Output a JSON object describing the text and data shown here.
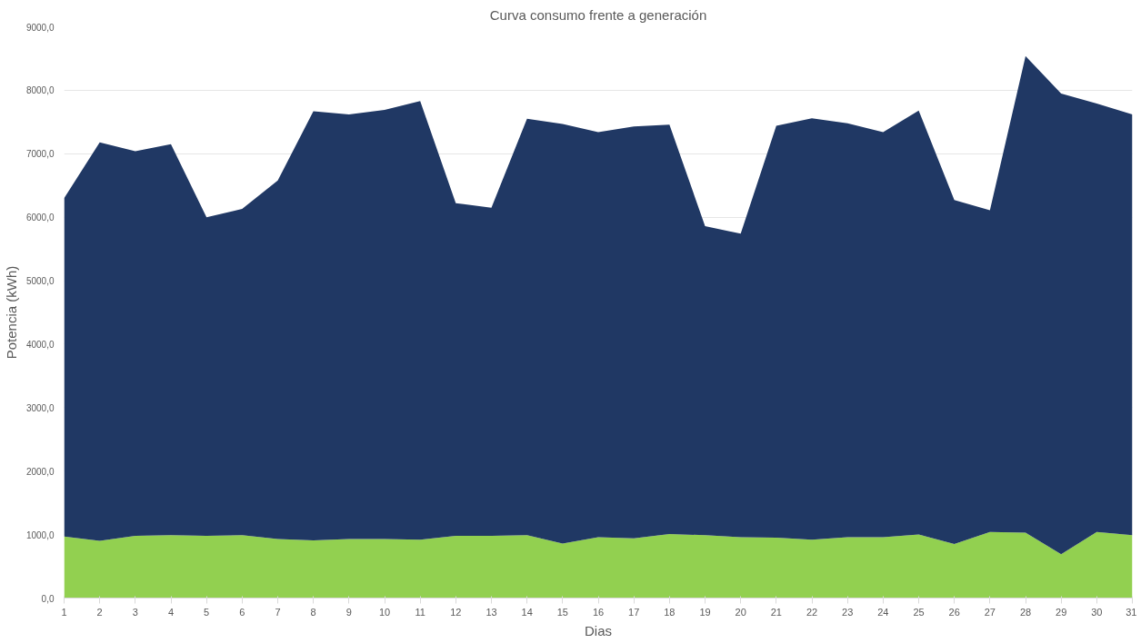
{
  "chart_data": {
    "type": "area",
    "title": "Curva consumo frente a generación",
    "xlabel": "Dias",
    "ylabel": "Potencia (kWh)",
    "x": [
      1,
      2,
      3,
      4,
      5,
      6,
      7,
      8,
      9,
      10,
      11,
      12,
      13,
      14,
      15,
      16,
      17,
      18,
      19,
      20,
      21,
      22,
      23,
      24,
      25,
      26,
      27,
      28,
      29,
      30,
      31
    ],
    "xlim": [
      1,
      31
    ],
    "xticks": [
      1,
      2,
      3,
      4,
      5,
      6,
      7,
      8,
      9,
      10,
      11,
      12,
      13,
      14,
      15,
      16,
      17,
      18,
      19,
      20,
      21,
      22,
      23,
      24,
      25,
      26,
      27,
      28,
      29,
      30,
      31
    ],
    "series": [
      {
        "color": "#92d050",
        "values": [
          970,
          900,
          980,
          990,
          980,
          990,
          930,
          910,
          930,
          930,
          920,
          980,
          980,
          990,
          860,
          960,
          940,
          1010,
          990,
          960,
          950,
          920,
          960,
          960,
          1000,
          850,
          1040,
          1030,
          690,
          1040,
          990
        ]
      },
      {
        "color": "#203864",
        "values": [
          5330,
          6280,
          6060,
          6160,
          5020,
          5140,
          5650,
          6760,
          6690,
          6760,
          6910,
          5240,
          5170,
          6560,
          6610,
          6380,
          6490,
          6450,
          4870,
          4780,
          6490,
          6640,
          6520,
          6380,
          6680,
          5420,
          5070,
          7510,
          7260,
          6750,
          6630
        ]
      }
    ],
    "ylim": [
      0,
      9000
    ],
    "yticks": [
      {
        "value": 0,
        "label": "0,0"
      },
      {
        "value": 1000,
        "label": "1000,0"
      },
      {
        "value": 2000,
        "label": "2000,0"
      },
      {
        "value": 3000,
        "label": "3000,0"
      },
      {
        "value": 4000,
        "label": "4000,0"
      },
      {
        "value": 5000,
        "label": "5000,0"
      },
      {
        "value": 6000,
        "label": "6000,0"
      },
      {
        "value": 7000,
        "label": "7000,0"
      },
      {
        "value": 8000,
        "label": "8000,0"
      },
      {
        "value": 9000,
        "label": "9000,0"
      }
    ],
    "stacked": true,
    "grid": "y"
  }
}
